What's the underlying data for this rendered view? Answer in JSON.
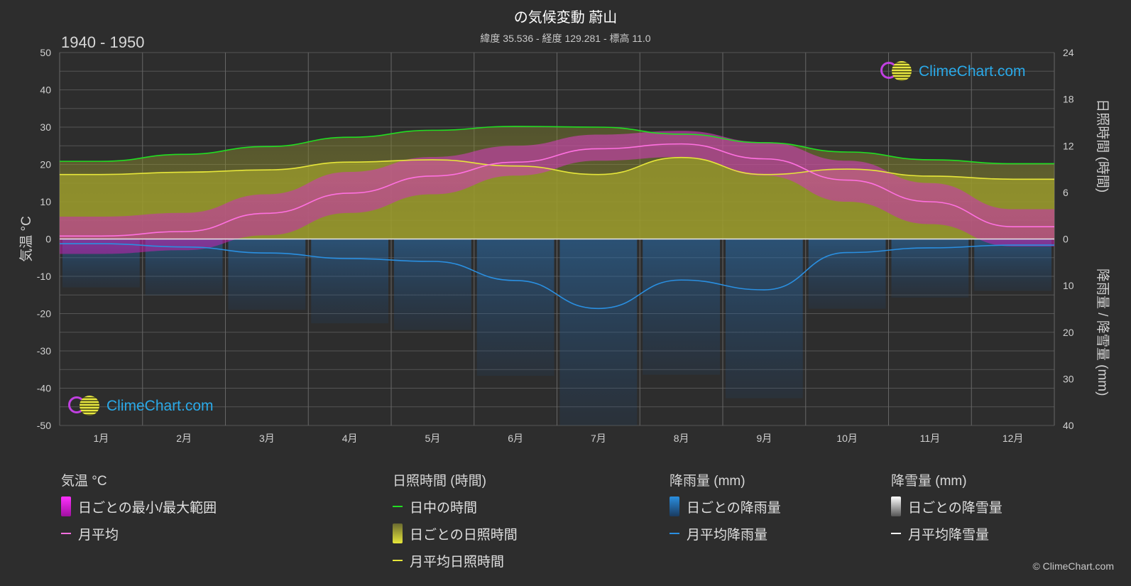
{
  "header": {
    "title": "の気候変動 蔚山",
    "subtitle": "緯度 35.536 - 経度 129.281 - 標高 11.0",
    "period": "1940 - 1950",
    "copyright": "© ClimeChart.com",
    "logo_text": "ClimeChart.com"
  },
  "colors": {
    "background": "#2d2d2d",
    "daylight": "#22dd22",
    "sunshine_avg": "#e6e63a",
    "sunshine_daily": "#8a8a2a",
    "temp_avg": "#ff70e0",
    "temp_range": "#e020d0",
    "rain_avg": "#2a8fe0",
    "rain_daily": "#2a6aa0",
    "snow_avg": "#ffffff",
    "logo": "#2aa9e8"
  },
  "chart_data": {
    "type": "area",
    "months": [
      "1月",
      "2月",
      "3月",
      "4月",
      "5月",
      "6月",
      "7月",
      "8月",
      "9月",
      "10月",
      "11月",
      "12月"
    ],
    "left_axis": {
      "title": "気温 °C",
      "ticks": [
        "50",
        "40",
        "30",
        "20",
        "10",
        "0",
        "-10",
        "-20",
        "-30",
        "-40",
        "-50"
      ],
      "range": [
        -50,
        50
      ]
    },
    "right_axis_top": {
      "title": "日照時間 (時間)",
      "ticks": [
        "24",
        "18",
        "12",
        "6",
        "0"
      ],
      "range": [
        0,
        24
      ]
    },
    "right_axis_bottom": {
      "title": "降雨量 / 降雪量 (mm)",
      "ticks": [
        "0",
        "10",
        "20",
        "30",
        "40"
      ],
      "range": [
        0,
        40
      ]
    },
    "series": [
      {
        "name": "日中の時間",
        "unit": "hours",
        "values": [
          10.0,
          10.9,
          11.9,
          13.1,
          14.0,
          14.5,
          14.4,
          13.5,
          12.4,
          11.2,
          10.2,
          9.7
        ]
      },
      {
        "name": "月平均日照時間",
        "unit": "hours",
        "values": [
          8.3,
          8.6,
          8.9,
          9.9,
          10.2,
          9.4,
          8.3,
          10.5,
          8.3,
          9.0,
          8.1,
          7.7
        ]
      },
      {
        "name": "月平均",
        "unit": "°C",
        "values": [
          0.8,
          2.0,
          6.9,
          12.3,
          16.9,
          20.6,
          24.2,
          25.5,
          21.5,
          15.8,
          10.0,
          3.3
        ]
      },
      {
        "name": "月平均降雨量",
        "unit": "mm",
        "values": [
          1.0,
          1.7,
          3.0,
          4.2,
          4.8,
          8.9,
          14.9,
          8.8,
          10.9,
          2.9,
          1.9,
          1.3
        ]
      },
      {
        "name": "月平均降雪量",
        "unit": "mm",
        "values": [
          0,
          0,
          0,
          0,
          0,
          0,
          0,
          0,
          0,
          0,
          0,
          0
        ]
      }
    ],
    "temp_daily_range": {
      "min": [
        -4,
        -3,
        1,
        7,
        12,
        17,
        21,
        22,
        17,
        10,
        4,
        -2
      ],
      "max": [
        6,
        7,
        12,
        18,
        22,
        25,
        28,
        29,
        26,
        21,
        15,
        8
      ]
    }
  },
  "legend": {
    "temperature": {
      "head": "気温 °C",
      "items": [
        "日ごとの最小/最大範囲",
        "月平均"
      ]
    },
    "sunshine": {
      "head": "日照時間 (時間)",
      "items": [
        "日中の時間",
        "日ごとの日照時間",
        "月平均日照時間"
      ]
    },
    "rain": {
      "head": "降雨量 (mm)",
      "items": [
        "日ごとの降雨量",
        "月平均降雨量"
      ]
    },
    "snow": {
      "head": "降雪量 (mm)",
      "items": [
        "日ごとの降雪量",
        "月平均降雪量"
      ]
    }
  }
}
